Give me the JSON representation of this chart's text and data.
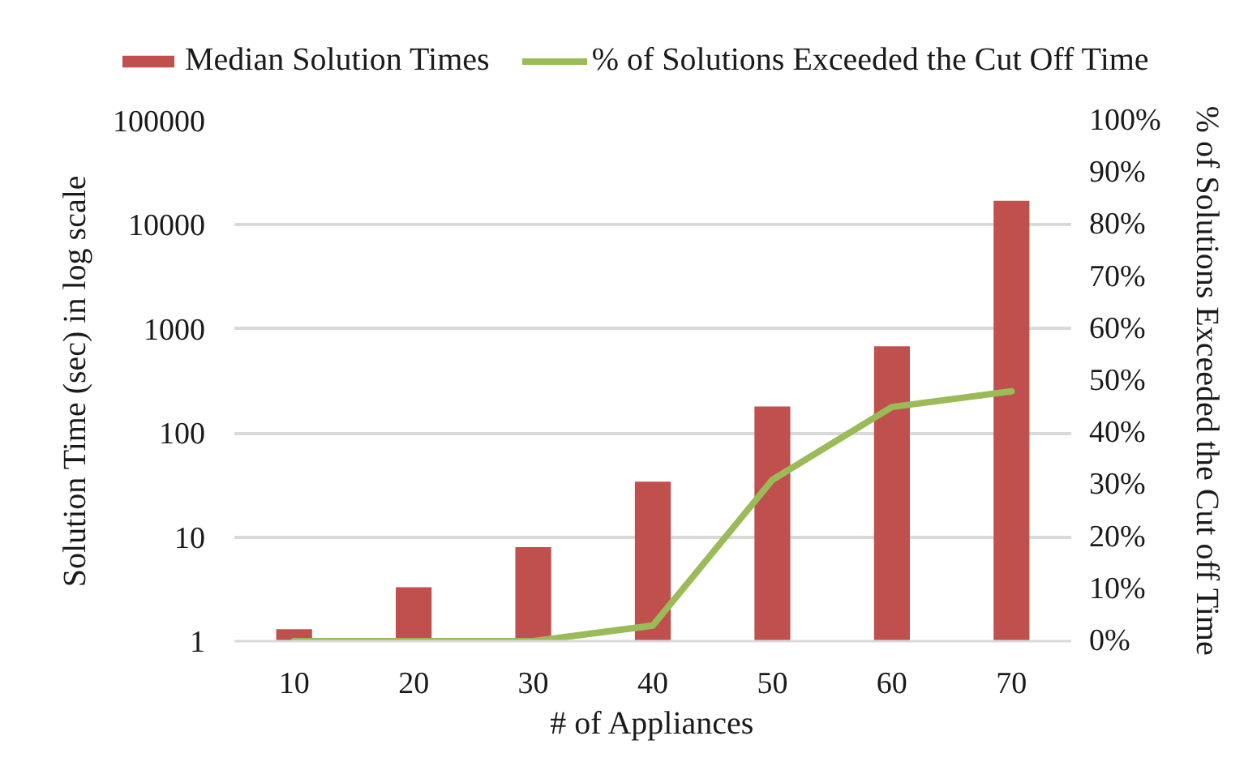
{
  "chart_data": {
    "type": "bar",
    "categories": [
      "10",
      "20",
      "30",
      "40",
      "50",
      "60",
      "70"
    ],
    "series": [
      {
        "name": "Median Solution Times",
        "color": "#c0504d",
        "values": [
          1.3,
          3.3,
          8,
          34,
          180,
          680,
          17000
        ]
      },
      {
        "name": "% of Solutions Exceeded the Cut Off Time",
        "type": "line",
        "axis": "y2",
        "color": "#9bbb59",
        "values": [
          0,
          0,
          0,
          3,
          31,
          45,
          48
        ]
      }
    ],
    "xlabel": "# of Appliances",
    "ylabel": "Solution Time (sec) in log scale",
    "y2label": "% of Solutions Exceeded the Cut off Time",
    "log": "y",
    "ylim": [
      1,
      100000
    ],
    "yticks": [
      1,
      10,
      100,
      1000,
      10000,
      100000
    ],
    "y2lim": [
      0,
      100
    ],
    "y2ticks": [
      {
        "value": 0,
        "label": "0%"
      },
      {
        "value": 10,
        "label": "10%"
      },
      {
        "value": 20,
        "label": "20%"
      },
      {
        "value": 30,
        "label": "30%"
      },
      {
        "value": 40,
        "label": "40%"
      },
      {
        "value": 50,
        "label": "50%"
      },
      {
        "value": 60,
        "label": "60%"
      },
      {
        "value": 70,
        "label": "70%"
      },
      {
        "value": 80,
        "label": "80%"
      },
      {
        "value": 90,
        "label": "90%"
      },
      {
        "value": 100,
        "label": "100%"
      }
    ],
    "grid": "y",
    "legend": "top"
  }
}
